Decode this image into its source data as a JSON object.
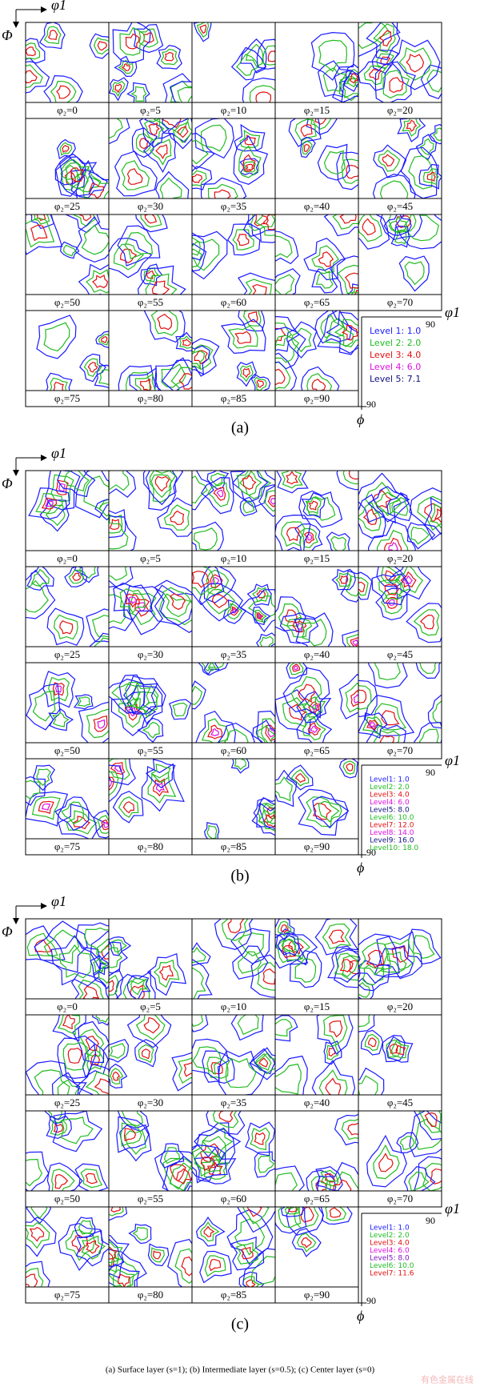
{
  "axis": {
    "phi1": "φ1",
    "Phi": "Φ",
    "ninety": "90",
    "phi": "ϕ"
  },
  "panels": [
    {
      "label": "(a)",
      "sections": [
        "φ₂=0",
        "φ₂=5",
        "φ₂=10",
        "φ₂=15",
        "φ₂=20",
        "φ₂=25",
        "φ₂=30",
        "φ₂=35",
        "φ₂=40",
        "φ₂=45",
        "φ₂=50",
        "φ₂=55",
        "φ₂=60",
        "φ₂=65",
        "φ₂=70",
        "φ₂=75",
        "φ₂=80",
        "φ₂=85",
        "φ₂=90"
      ],
      "legend": [
        {
          "text": "Level 1: 1.0",
          "color": "#1a1aff"
        },
        {
          "text": "Level 2: 2.0",
          "color": "#22bb22"
        },
        {
          "text": "Level 3: 4.0",
          "color": "#e01010"
        },
        {
          "text": "Level 4: 6.0",
          "color": "#e010e0"
        },
        {
          "text": "Level 5: 7.1",
          "color": "#101080"
        }
      ]
    },
    {
      "label": "(b)",
      "sections": [
        "φ₂=0",
        "φ₂=5",
        "φ₂=10",
        "φ₂=15",
        "φ₂=20",
        "φ₂=25",
        "φ₂=30",
        "φ₂=35",
        "φ₂=40",
        "φ₂=45",
        "φ₂=50",
        "φ₂=55",
        "φ₂=60",
        "φ₂=65",
        "φ₂=70",
        "φ₂=75",
        "φ₂=80",
        "φ₂=85",
        "φ₂=90"
      ],
      "legend": [
        {
          "text": "Level1: 1.0",
          "color": "#1a1aff"
        },
        {
          "text": "Level2: 2.0",
          "color": "#22bb22"
        },
        {
          "text": "Level3: 4.0",
          "color": "#e01010"
        },
        {
          "text": "Level4: 6.0",
          "color": "#e010e0"
        },
        {
          "text": "Level5: 8.0",
          "color": "#101080"
        },
        {
          "text": "Level6: 10.0",
          "color": "#22bb22"
        },
        {
          "text": "Level7: 12.0",
          "color": "#e01010"
        },
        {
          "text": "Level8: 14.0",
          "color": "#e010e0"
        },
        {
          "text": "Level9: 16.0",
          "color": "#101080"
        },
        {
          "text": "Level10: 18.0",
          "color": "#22bb22"
        }
      ]
    },
    {
      "label": "(c)",
      "sections": [
        "φ₂=0",
        "φ₂=5",
        "φ₂=10",
        "φ₂=15",
        "φ₂=20",
        "φ₂=25",
        "φ₂=30",
        "φ₂=35",
        "φ₂=40",
        "φ₂=45",
        "φ₂=50",
        "φ₂=55",
        "φ₂=60",
        "φ₂=65",
        "φ₂=70",
        "φ₂=75",
        "φ₂=80",
        "φ₂=85",
        "φ₂=90"
      ],
      "legend": [
        {
          "text": "Level1: 1.0",
          "color": "#1a1aff"
        },
        {
          "text": "Level2: 2.0",
          "color": "#22bb22"
        },
        {
          "text": "Level3: 4.0",
          "color": "#e01010"
        },
        {
          "text": "Level4: 6.0",
          "color": "#e010e0"
        },
        {
          "text": "Level5: 8.0",
          "color": "#8010c0"
        },
        {
          "text": "Level6: 10.0",
          "color": "#22bb22"
        },
        {
          "text": "Level7: 11.6",
          "color": "#e01010"
        }
      ]
    }
  ],
  "caption": "(a) Surface layer (s=1); (b) Intermediate layer (s=0.5); (c) Center layer (s=0)",
  "watermark": "有色金属在线"
}
